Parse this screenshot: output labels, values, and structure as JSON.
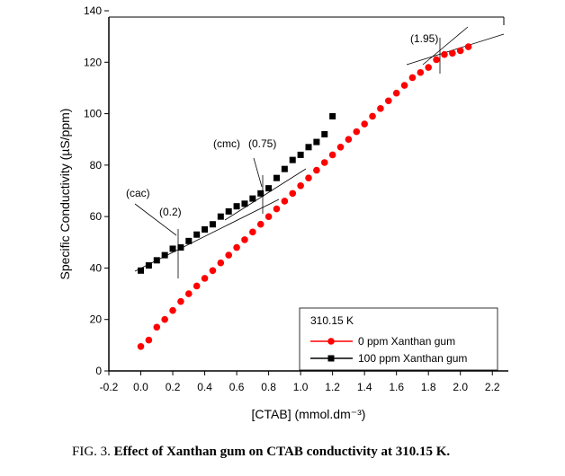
{
  "chart_data": {
    "type": "scatter-line",
    "xlabel": "[CTAB] (mmol.dm⁻³)",
    "ylabel": "Specific Conductivity (µS/ppm)",
    "xlim": [
      -0.2,
      2.3
    ],
    "ylim": [
      0,
      140
    ],
    "xticks": [
      -0.2,
      {
        "value": 0,
        "label": "0.0"
      },
      0.2,
      0.4,
      0.6,
      0.8,
      {
        "value": 1,
        "label": "1.0"
      },
      1.2,
      1.4,
      1.6,
      1.8,
      {
        "value": 2,
        "label": "2.0"
      },
      2.2
    ],
    "yticks": [
      0,
      20,
      40,
      60,
      80,
      100,
      120,
      140
    ],
    "legend_title": "310.15 K",
    "annotations": [
      "(cac)",
      "(0.2)",
      "(cmc)",
      "(0.75)",
      "(1.95)"
    ],
    "series": [
      {
        "name": "0 ppm Xanthan gum",
        "color": "#ff0000",
        "marker": "circle",
        "x": [
          0,
          0.05,
          0.1,
          0.15,
          0.2,
          0.25,
          0.3,
          0.35,
          0.4,
          0.45,
          0.5,
          0.55,
          0.6,
          0.65,
          0.7,
          0.75,
          0.8,
          0.85,
          0.9,
          0.95,
          1,
          1.05,
          1.1,
          1.15,
          1.2,
          1.25,
          1.3,
          1.35,
          1.4,
          1.45,
          1.5,
          1.55,
          1.6,
          1.65,
          1.7,
          1.75,
          1.8,
          1.85,
          1.9,
          1.95,
          2,
          2.05
        ],
        "values": [
          9.5,
          12,
          17,
          20,
          23.5,
          27,
          30,
          33,
          36,
          39,
          42,
          45,
          48,
          51,
          54,
          57,
          60,
          63,
          66,
          69,
          72,
          75,
          78,
          81,
          84,
          87,
          90,
          93,
          96,
          99,
          102,
          105,
          108,
          111,
          114,
          116,
          118,
          121,
          123,
          123.5,
          124.5,
          126
        ]
      },
      {
        "name": "100 ppm Xanthan gum",
        "color": "#000000",
        "marker": "square",
        "x": [
          0,
          0.05,
          0.1,
          0.15,
          0.2,
          0.25,
          0.3,
          0.35,
          0.4,
          0.45,
          0.5,
          0.55,
          0.6,
          0.65,
          0.7,
          0.75,
          0.8,
          0.85,
          0.9,
          0.95,
          1,
          1.05,
          1.1,
          1.15,
          1.2
        ],
        "values": [
          39,
          41,
          43,
          45,
          47.5,
          48,
          50.5,
          53,
          55,
          57,
          60,
          62,
          64,
          65,
          67,
          69,
          71,
          75,
          78.5,
          82,
          84,
          87,
          89,
          92,
          99
        ]
      }
    ]
  },
  "caption": {
    "label": "FIG. 3.",
    "text": "Effect of Xanthan gum on CTAB conductivity at 310.15 K."
  }
}
